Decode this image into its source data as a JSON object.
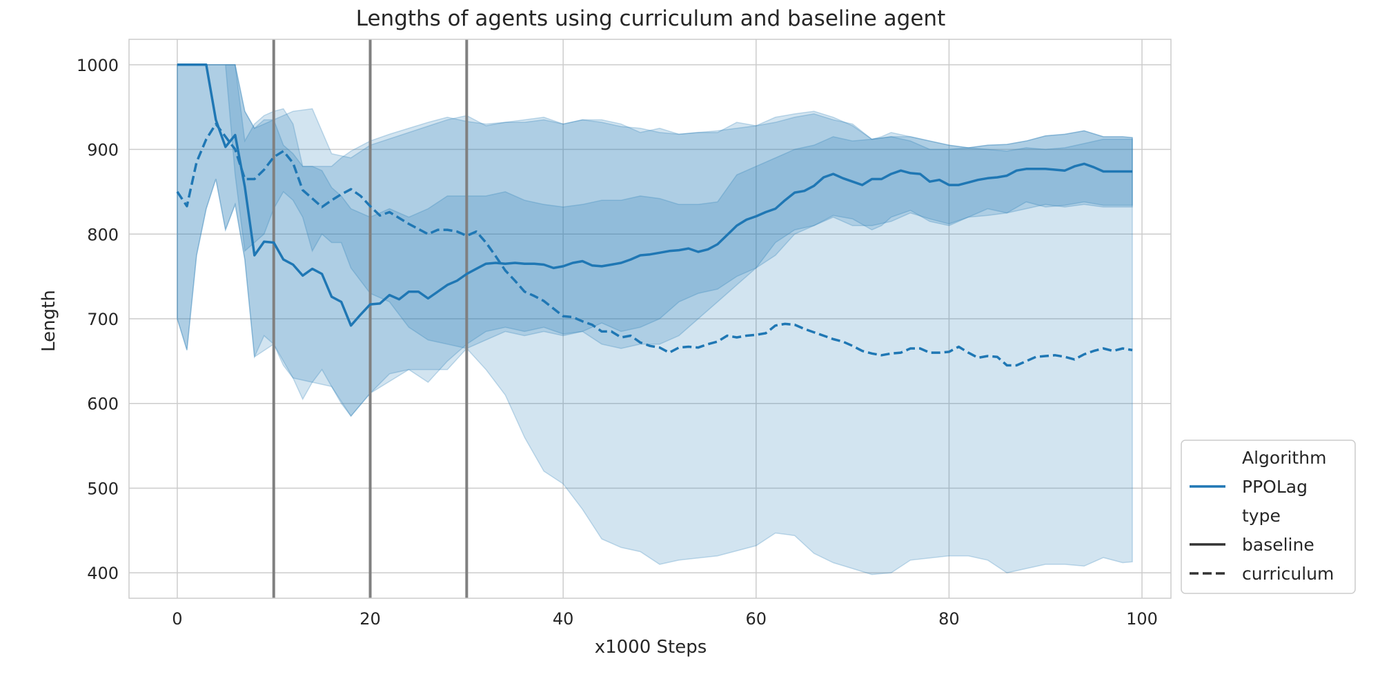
{
  "chart_data": {
    "type": "line",
    "title": "Lengths of agents using curriculum and baseline agent",
    "xlabel": "x1000 Steps",
    "ylabel": "Length",
    "xlim": [
      -5,
      103
    ],
    "ylim": [
      370,
      1030
    ],
    "xticks": [
      0,
      20,
      40,
      60,
      80,
      100
    ],
    "yticks": [
      400,
      500,
      600,
      700,
      800,
      900,
      1000
    ],
    "grid": true,
    "legend_position": "right-bottom-outside",
    "vertical_lines": [
      10,
      20,
      30
    ],
    "colors": {
      "series": "#1f77b4",
      "vline": "#808080",
      "grid": "#cccccc"
    },
    "legend": [
      {
        "label": "Algorithm",
        "kind": "header"
      },
      {
        "label": "PPOLag",
        "kind": "color"
      },
      {
        "label": "type",
        "kind": "header"
      },
      {
        "label": "baseline",
        "kind": "solid"
      },
      {
        "label": "curriculum",
        "kind": "dashed"
      }
    ],
    "series": [
      {
        "algorithm": "PPOLag",
        "type": "baseline",
        "line_style": "solid",
        "x": [
          0,
          3,
          4,
          5,
          6,
          7,
          8,
          9,
          10,
          11,
          12,
          13,
          14,
          15,
          16,
          17,
          18,
          19,
          20,
          21,
          22,
          23,
          24,
          25,
          26,
          28,
          29,
          30,
          31,
          32,
          33,
          34,
          35,
          36,
          37,
          38,
          39,
          40,
          41,
          42,
          43,
          44,
          45,
          46,
          47,
          48,
          49,
          50,
          51,
          52,
          53,
          54,
          55,
          56,
          57,
          58,
          59,
          60,
          61,
          62,
          63,
          64,
          65,
          66,
          67,
          68,
          69,
          70,
          71,
          72,
          73,
          74,
          75,
          76,
          77,
          78,
          79,
          80,
          81,
          82,
          83,
          84,
          85,
          86,
          87,
          88,
          89,
          90,
          91,
          92,
          93,
          94,
          95,
          96,
          97,
          98,
          99
        ],
        "y": [
          1000,
          1000,
          935,
          903,
          917,
          856,
          775,
          791,
          790,
          770,
          764,
          751,
          759,
          753,
          726,
          720,
          692,
          705,
          717,
          718,
          728,
          723,
          732,
          732,
          724,
          740,
          745,
          753,
          759,
          765,
          766,
          765,
          766,
          765,
          765,
          764,
          760,
          762,
          766,
          768,
          763,
          762,
          764,
          766,
          770,
          775,
          776,
          778,
          780,
          781,
          783,
          779,
          782,
          788,
          799,
          810,
          817,
          821,
          826,
          830,
          840,
          849,
          851,
          857,
          867,
          871,
          866,
          862,
          858,
          865,
          865,
          871,
          875,
          872,
          871,
          862,
          864,
          858,
          858,
          861,
          864,
          866,
          867,
          869,
          875,
          877,
          877,
          877,
          876,
          875,
          880,
          883,
          879,
          874,
          874,
          874,
          874
        ],
        "band_x": [
          0,
          5,
          6,
          7,
          8,
          9,
          10,
          11,
          12,
          13,
          14,
          15,
          16,
          17,
          18,
          20,
          22,
          24,
          26,
          28,
          30,
          32,
          34,
          36,
          38,
          40,
          42,
          44,
          46,
          48,
          50,
          52,
          54,
          56,
          58,
          60,
          62,
          64,
          66,
          68,
          70,
          72,
          74,
          76,
          78,
          80,
          82,
          84,
          86,
          88,
          90,
          92,
          94,
          96,
          98,
          99
        ],
        "band_lower": [
          1000,
          1000,
          870,
          780,
          790,
          800,
          830,
          850,
          840,
          820,
          780,
          800,
          790,
          790,
          760,
          730,
          720,
          690,
          675,
          670,
          665,
          675,
          685,
          680,
          685,
          680,
          685,
          670,
          665,
          670,
          670,
          680,
          700,
          720,
          740,
          760,
          790,
          805,
          810,
          820,
          810,
          810,
          815,
          825,
          818,
          812,
          820,
          822,
          825,
          830,
          835,
          832,
          835,
          832,
          832,
          832
        ],
        "band_upper": [
          1000,
          1000,
          1000,
          945,
          925,
          935,
          935,
          905,
          895,
          880,
          880,
          875,
          855,
          845,
          830,
          820,
          830,
          820,
          830,
          845,
          845,
          845,
          850,
          840,
          835,
          832,
          835,
          840,
          840,
          845,
          842,
          835,
          835,
          838,
          870,
          880,
          890,
          900,
          905,
          915,
          910,
          912,
          915,
          910,
          900,
          900,
          902,
          900,
          898,
          902,
          900,
          902,
          907,
          912,
          912,
          912
        ]
      },
      {
        "algorithm": "PPOLag",
        "type": "curriculum",
        "line_style": "dashed",
        "x": [
          0,
          1,
          2,
          3,
          4,
          5,
          6,
          7,
          8,
          9,
          10,
          11,
          12,
          13,
          14,
          15,
          16,
          17,
          18,
          19,
          20,
          21,
          22,
          23,
          24,
          25,
          26,
          27,
          28,
          29,
          30,
          31,
          32,
          33,
          34,
          35,
          36,
          37,
          38,
          39,
          40,
          41,
          42,
          43,
          44,
          45,
          46,
          47,
          48,
          49,
          50,
          51,
          52,
          53,
          54,
          55,
          56,
          57,
          58,
          59,
          60,
          61,
          62,
          63,
          64,
          65,
          66,
          67,
          68,
          69,
          70,
          71,
          72,
          73,
          74,
          75,
          76,
          77,
          78,
          79,
          80,
          81,
          82,
          83,
          84,
          85,
          86,
          87,
          88,
          89,
          90,
          91,
          92,
          93,
          94,
          95,
          96,
          97,
          98,
          99
        ],
        "y": [
          850,
          833,
          885,
          912,
          930,
          915,
          900,
          865,
          865,
          876,
          891,
          898,
          884,
          852,
          842,
          832,
          840,
          847,
          853,
          845,
          833,
          822,
          826,
          819,
          812,
          806,
          800,
          805,
          805,
          803,
          798,
          803,
          790,
          774,
          757,
          745,
          732,
          727,
          721,
          712,
          703,
          702,
          697,
          693,
          685,
          685,
          678,
          680,
          672,
          668,
          666,
          660,
          666,
          667,
          666,
          670,
          673,
          680,
          678,
          680,
          681,
          683,
          692,
          694,
          693,
          688,
          684,
          680,
          676,
          673,
          668,
          662,
          659,
          657,
          659,
          660,
          665,
          665,
          660,
          660,
          661,
          667,
          660,
          654,
          656,
          655,
          645,
          645,
          650,
          655,
          656,
          657,
          655,
          652,
          658,
          662,
          665,
          662,
          665,
          663
        ],
        "band_x": [
          0,
          1,
          2,
          3,
          4,
          5,
          6,
          7,
          8,
          9,
          10,
          11,
          12,
          13,
          14,
          15,
          16,
          17,
          18,
          20,
          22,
          24,
          26,
          28,
          30,
          32,
          34,
          36,
          38,
          40,
          42,
          44,
          46,
          48,
          50,
          52,
          54,
          56,
          58,
          60,
          62,
          64,
          66,
          68,
          70,
          72,
          73,
          74,
          76,
          78,
          80,
          82,
          84,
          86,
          88,
          90,
          92,
          94,
          96,
          98,
          99
        ],
        "band_lower": [
          700,
          663,
          775,
          830,
          865,
          805,
          835,
          770,
          655,
          680,
          670,
          645,
          630,
          605,
          625,
          640,
          620,
          600,
          585,
          612,
          635,
          640,
          625,
          650,
          670,
          685,
          690,
          685,
          690,
          682,
          685,
          695,
          685,
          690,
          700,
          720,
          730,
          735,
          750,
          760,
          775,
          800,
          810,
          822,
          818,
          805,
          810,
          820,
          828,
          815,
          810,
          820,
          830,
          825,
          838,
          832,
          834,
          838,
          834,
          834,
          834
        ],
        "band_upper": [
          1000,
          1000,
          1000,
          1000,
          1000,
          1000,
          1000,
          910,
          930,
          940,
          945,
          948,
          930,
          880,
          880,
          880,
          880,
          890,
          898,
          910,
          918,
          925,
          932,
          938,
          933,
          930,
          932,
          935,
          938,
          930,
          935,
          935,
          930,
          920,
          925,
          918,
          920,
          920,
          932,
          928,
          938,
          942,
          945,
          938,
          928,
          912,
          915,
          920,
          915,
          910,
          905,
          902,
          905,
          906,
          910,
          916,
          918,
          922,
          915,
          915,
          914
        ]
      },
      {
        "name": "",
        "role": "outer-band",
        "band_x": [
          0,
          1,
          2,
          3,
          4,
          5,
          6,
          7,
          8,
          10,
          12,
          14,
          16,
          18,
          20,
          24,
          28,
          30,
          32,
          34,
          36,
          38,
          40,
          42,
          44,
          46,
          48,
          50,
          52,
          56,
          60,
          62,
          64,
          66,
          68,
          70,
          72,
          74,
          76,
          80,
          82,
          84,
          86,
          88,
          90,
          92,
          94,
          96,
          98,
          99
        ],
        "band_lower": [
          700,
          663,
          775,
          830,
          865,
          805,
          835,
          770,
          655,
          670,
          630,
          625,
          620,
          585,
          612,
          640,
          640,
          665,
          640,
          610,
          560,
          520,
          505,
          475,
          440,
          430,
          425,
          410,
          415,
          420,
          432,
          447,
          444,
          423,
          412,
          405,
          398,
          400,
          415,
          420,
          420,
          415,
          400,
          405,
          410,
          410,
          408,
          418,
          412,
          413
        ],
        "band_upper": [
          1000,
          1000,
          1000,
          1000,
          1000,
          1000,
          1000,
          945,
          925,
          935,
          945,
          948,
          895,
          890,
          905,
          920,
          935,
          940,
          928,
          932,
          932,
          935,
          930,
          935,
          932,
          927,
          925,
          920,
          918,
          922,
          928,
          932,
          938,
          942,
          935,
          930,
          912,
          915,
          915,
          905,
          902,
          905,
          906,
          910,
          916,
          918,
          922,
          915,
          915,
          914
        ]
      }
    ]
  }
}
